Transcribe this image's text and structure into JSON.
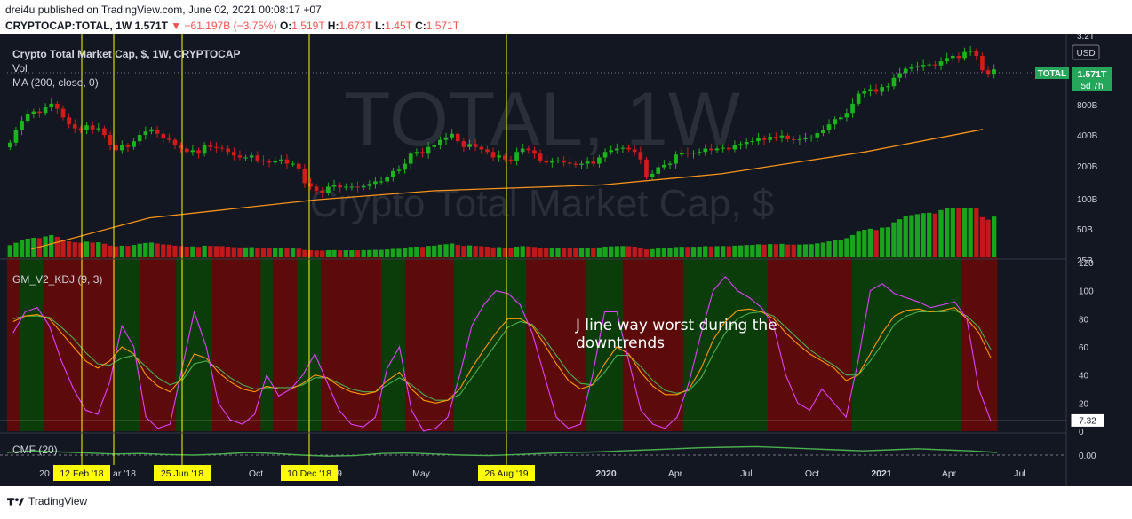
{
  "header": {
    "line1": "drei4u published on TradingView.com, June 02, 2021 00:08:17 +07",
    "symbol": "CRYPTOCAP:TOTAL, 1W",
    "last": "1.571T",
    "change": "−61.197B (−3.75%)",
    "o_label": "O:",
    "o": "1.519T",
    "h_label": "H:",
    "h": "1.673T",
    "l_label": "L:",
    "l": "1.45T",
    "c_label": "C:",
    "c": "1.571T"
  },
  "colors": {
    "up": "#1bb51b",
    "down": "#d51a1a",
    "ma": "#f7931a",
    "kdj_k": "#ff9800",
    "kdj_d": "#4caf50",
    "kdj_j": "#e040fb",
    "cmf": "#4caf50",
    "bg": "#000000",
    "zone_red": "#5c0a0a",
    "zone_green": "#0b3d0b",
    "marker": "#ffff00",
    "badge": "#26a65b"
  },
  "main_pane": {
    "title": "Crypto Total Market Cap, $, 1W, CRYPTOCAP",
    "vol_label": "Vol",
    "ma_label": "MA (200, close, 0)",
    "watermark_big": "TOTAL, 1W",
    "watermark_small": "Crypto Total Market Cap, $",
    "currency": "USD",
    "price_badge_name": "TOTAL",
    "price_badge_value": "1.571T",
    "price_badge_time": "5d 7h",
    "axis_labels": [
      "3.2T",
      "800B",
      "400B",
      "200B",
      "100B",
      "50B",
      "25B"
    ]
  },
  "kdj_pane": {
    "label": "GM_V2_KDJ (9, 3)",
    "axis_labels": [
      "120",
      "100",
      "80",
      "60",
      "40",
      "20",
      "0"
    ],
    "current_value": "7.32",
    "annotation": "J line way worst during the downtrends"
  },
  "cmf_pane": {
    "label": "CMF (20)",
    "axis_value": "0.00"
  },
  "time_axis": {
    "labels": [
      "20",
      "Oct",
      "May",
      "2020",
      "Apr",
      "Jul",
      "Oct",
      "2021",
      "Apr",
      "Jul"
    ],
    "partial_labels": [
      "ar '18",
      "9"
    ],
    "markers": [
      "12 Feb '18",
      "25 Jun '18",
      "10 Dec '18",
      "26 Aug '19"
    ]
  },
  "footer": {
    "brand": "TradingView"
  },
  "chart_data": {
    "type": "candlestick",
    "title": "Crypto Total Market Cap, $, 1W, CRYPTOCAP",
    "y_scale": "log",
    "ylim": [
      25,
      3200
    ],
    "y_unit": "B USD",
    "x_range": [
      "2017-12",
      "2021-07"
    ],
    "series": [
      {
        "name": "TOTAL (approx. weekly close, B USD)",
        "values": [
          320,
          420,
          520,
          600,
          640,
          620,
          700,
          760,
          680,
          560,
          480,
          440,
          420,
          470,
          430,
          440,
          380,
          300,
          270,
          300,
          290,
          330,
          380,
          410,
          430,
          390,
          350,
          340,
          300,
          280,
          260,
          270,
          250,
          300,
          290,
          285,
          280,
          260,
          240,
          230,
          230,
          240,
          215,
          210,
          205,
          215,
          220,
          200,
          200,
          180,
          130,
          120,
          110,
          105,
          120,
          125,
          118,
          120,
          120,
          118,
          122,
          128,
          135,
          135,
          150,
          170,
          175,
          200,
          250,
          260,
          250,
          290,
          300,
          340,
          360,
          390,
          330,
          290,
          310,
          290,
          275,
          260,
          230,
          240,
          220,
          215,
          260,
          280,
          270,
          250,
          215,
          205,
          215,
          215,
          205,
          200,
          195,
          200,
          210,
          200,
          230,
          260,
          270,
          280,
          285,
          275,
          260,
          220,
          150,
          160,
          185,
          195,
          200,
          245,
          255,
          250,
          255,
          260,
          280,
          270,
          280,
          285,
          275,
          300,
          310,
          325,
          330,
          355,
          340,
          365,
          360,
          375,
          345,
          340,
          345,
          355,
          360,
          395,
          425,
          480,
          540,
          560,
          620,
          760,
          950,
          1000,
          1050,
          990,
          1100,
          1120,
          1350,
          1500,
          1650,
          1700,
          1750,
          1800,
          1820,
          1780,
          1950,
          2100,
          2200,
          2100,
          2400,
          2450,
          2200,
          1600,
          1480,
          1630
        ]
      },
      {
        "name": "MA (200, close, 0)",
        "x": [
          "2018-01",
          "2018-06",
          "2019-01",
          "2019-06",
          "2020-01",
          "2020-06",
          "2020-12",
          "2021-05"
        ],
        "values": [
          30,
          60,
          90,
          110,
          125,
          160,
          260,
          430
        ]
      }
    ],
    "kdj_ylim": [
      0,
      120
    ],
    "kdj_series": [
      {
        "name": "K",
        "values": [
          78,
          82,
          83,
          80,
          70,
          60,
          50,
          45,
          50,
          60,
          55,
          40,
          32,
          28,
          38,
          55,
          52,
          42,
          35,
          30,
          28,
          32,
          30,
          30,
          34,
          40,
          38,
          32,
          28,
          26,
          28,
          36,
          42,
          30,
          22,
          20,
          22,
          30,
          45,
          58,
          70,
          80,
          80,
          75,
          62,
          48,
          36,
          30,
          33,
          48,
          60,
          55,
          42,
          32,
          26,
          26,
          30,
          45,
          65,
          78,
          86,
          87,
          85,
          80,
          70,
          62,
          55,
          50,
          45,
          36,
          40,
          55,
          70,
          82,
          86,
          87,
          85,
          86,
          88,
          80,
          70,
          52
        ]
      },
      {
        "name": "D",
        "values": [
          80,
          82,
          82,
          81,
          74,
          66,
          56,
          48,
          47,
          52,
          54,
          46,
          38,
          33,
          36,
          48,
          50,
          45,
          38,
          33,
          30,
          31,
          31,
          31,
          33,
          38,
          38,
          34,
          30,
          28,
          28,
          33,
          38,
          33,
          26,
          22,
          22,
          26,
          38,
          50,
          62,
          74,
          78,
          76,
          66,
          54,
          42,
          34,
          33,
          42,
          54,
          54,
          46,
          36,
          29,
          27,
          29,
          38,
          55,
          70,
          80,
          84,
          85,
          82,
          74,
          66,
          58,
          52,
          47,
          40,
          40,
          50,
          62,
          76,
          82,
          85,
          85,
          85,
          86,
          82,
          74,
          58
        ]
      },
      {
        "name": "J",
        "values": [
          70,
          85,
          88,
          75,
          50,
          30,
          15,
          12,
          35,
          75,
          60,
          10,
          2,
          5,
          45,
          85,
          60,
          20,
          8,
          5,
          12,
          40,
          25,
          30,
          40,
          55,
          35,
          15,
          5,
          3,
          10,
          45,
          60,
          15,
          0,
          2,
          10,
          40,
          75,
          90,
          100,
          98,
          90,
          70,
          40,
          10,
          2,
          5,
          40,
          85,
          85,
          50,
          15,
          5,
          2,
          10,
          35,
          70,
          100,
          110,
          100,
          95,
          88,
          75,
          40,
          20,
          15,
          30,
          20,
          10,
          50,
          100,
          105,
          98,
          95,
          92,
          88,
          90,
          92,
          80,
          30,
          7
        ]
      }
    ],
    "kdj_last_value": 7.32,
    "cmf_series": [
      {
        "name": "CMF (20)",
        "values": [
          0.05,
          0.08,
          0.06,
          0.04,
          0.02,
          0.03,
          0.01,
          0.0,
          0.02,
          0.05,
          0.03,
          0.0,
          -0.02,
          -0.01,
          0.03,
          0.04,
          0.02,
          0.0,
          -0.01,
          0.01,
          0.03,
          0.05,
          0.06,
          0.08,
          0.1,
          0.12,
          0.14,
          0.15,
          0.16,
          0.14,
          0.12,
          0.1,
          0.08,
          0.1,
          0.12,
          0.1,
          0.08,
          0.05
        ]
      }
    ]
  }
}
